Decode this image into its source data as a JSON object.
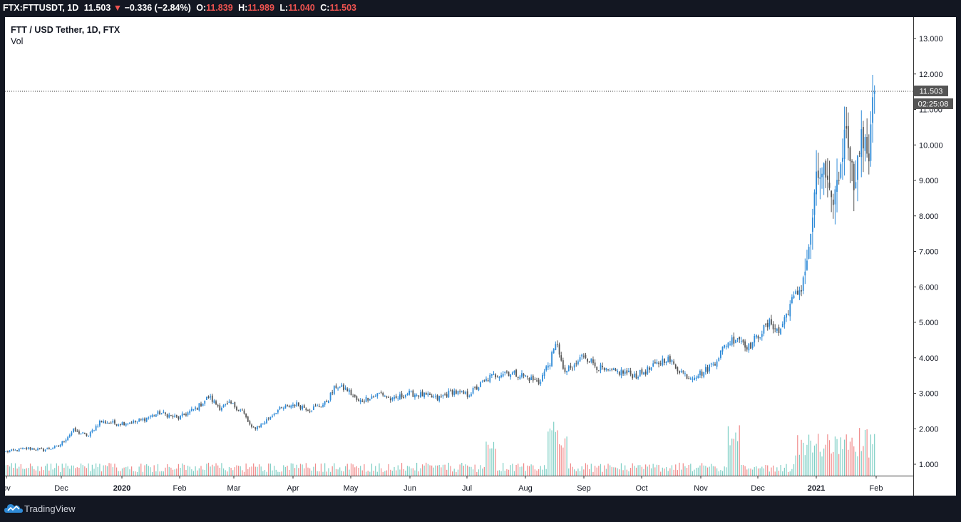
{
  "header": {
    "symbol": "FTX:FTTUSDT, 1D",
    "last": "11.503",
    "change_arrow": "▼",
    "change": "−0.336 (−2.84%)",
    "o_label": "O:",
    "o_value": "11.839",
    "h_label": "H:",
    "h_value": "11.989",
    "l_label": "L:",
    "l_value": "11.040",
    "c_label": "C:",
    "c_value": "11.503"
  },
  "legend": {
    "title": "FTT / USD Tether, 1D, FTX",
    "volume_label": "Vol"
  },
  "price_label": {
    "value": "11.503",
    "countdown": "02:25:08"
  },
  "branding": {
    "text": "TradingView",
    "icon": "tradingview-cloud-icon"
  },
  "colors": {
    "background": "#131722",
    "panel": "#ffffff",
    "up": "#2f8bd8",
    "down": "#555555",
    "vol_up": "#7fcfc5",
    "vol_down": "#f08a8a",
    "text_dark": "#131722",
    "price_tag": "#555555"
  },
  "chart_data": {
    "type": "candlestick",
    "title": "FTT / USD Tether, 1D, FTX",
    "y_axis": {
      "range": [
        0.7,
        13.4
      ],
      "ticks": [
        "13.000",
        "12.000",
        "11.000",
        "10.000",
        "9.000",
        "8.000",
        "7.000",
        "6.000",
        "5.000",
        "4.000",
        "3.000",
        "2.000",
        "1.000"
      ],
      "position": "right"
    },
    "x_axis": {
      "ticks": [
        "ov",
        "Dec",
        "2020",
        "Feb",
        "Mar",
        "Apr",
        "May",
        "Jun",
        "Jul",
        "Aug",
        "Sep",
        "Oct",
        "Nov",
        "Dec",
        "2021",
        "Feb"
      ],
      "bold_ticks": [
        "2020",
        "2021"
      ]
    },
    "last_price": 11.503,
    "price_anchors": [
      [
        0,
        1.35
      ],
      [
        12,
        1.45
      ],
      [
        20,
        1.4
      ],
      [
        28,
        1.5
      ],
      [
        36,
        1.95
      ],
      [
        44,
        1.8
      ],
      [
        50,
        2.2
      ],
      [
        60,
        2.15
      ],
      [
        70,
        2.2
      ],
      [
        82,
        2.45
      ],
      [
        92,
        2.3
      ],
      [
        102,
        2.6
      ],
      [
        108,
        2.9
      ],
      [
        114,
        2.6
      ],
      [
        120,
        2.7
      ],
      [
        126,
        2.5
      ],
      [
        131,
        2.0
      ],
      [
        136,
        2.1
      ],
      [
        144,
        2.5
      ],
      [
        154,
        2.7
      ],
      [
        162,
        2.55
      ],
      [
        170,
        2.7
      ],
      [
        176,
        3.2
      ],
      [
        182,
        3.1
      ],
      [
        188,
        2.75
      ],
      [
        194,
        2.9
      ],
      [
        200,
        3.0
      ],
      [
        206,
        2.8
      ],
      [
        214,
        3.0
      ],
      [
        222,
        2.95
      ],
      [
        230,
        2.85
      ],
      [
        238,
        3.05
      ],
      [
        246,
        2.95
      ],
      [
        258,
        3.45
      ],
      [
        266,
        3.6
      ],
      [
        276,
        3.5
      ],
      [
        284,
        3.3
      ],
      [
        290,
        3.9
      ],
      [
        294,
        4.45
      ],
      [
        297,
        3.6
      ],
      [
        302,
        3.7
      ],
      [
        308,
        4.1
      ],
      [
        314,
        3.8
      ],
      [
        320,
        3.6
      ],
      [
        328,
        3.6
      ],
      [
        336,
        3.5
      ],
      [
        344,
        3.7
      ],
      [
        352,
        4.0
      ],
      [
        358,
        3.7
      ],
      [
        364,
        3.45
      ],
      [
        372,
        3.6
      ],
      [
        378,
        3.9
      ],
      [
        384,
        4.4
      ],
      [
        390,
        4.6
      ],
      [
        396,
        4.3
      ],
      [
        402,
        4.7
      ],
      [
        408,
        5.0
      ],
      [
        412,
        4.7
      ],
      [
        418,
        5.5
      ],
      [
        424,
        6.0
      ],
      [
        428,
        7.0
      ],
      [
        432,
        9.0
      ],
      [
        436,
        9.3
      ],
      [
        440,
        8.3
      ],
      [
        444,
        9.1
      ],
      [
        448,
        10.6
      ],
      [
        452,
        8.9
      ],
      [
        456,
        10.2
      ],
      [
        460,
        9.7
      ],
      [
        462,
        11.55
      ],
      [
        463,
        11.503
      ]
    ],
    "volume": {
      "range": [
        0,
        3.4
      ],
      "note": "volume histogram drawn in the lower band of the price pane, ticks unlabeled"
    }
  }
}
